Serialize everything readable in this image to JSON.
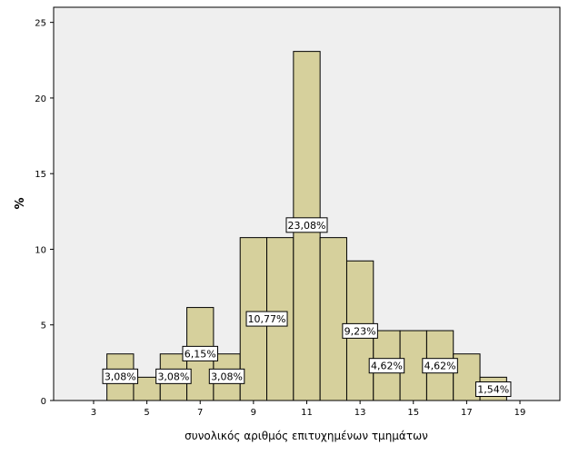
{
  "chart_data": {
    "type": "bar",
    "title": "",
    "xlabel": "συνολικός αριθμός επιτυχημένων τμημάτων",
    "ylabel": "%",
    "xlim": [
      1.5,
      20.5
    ],
    "ylim": [
      0,
      26
    ],
    "x_ticks": [
      3,
      5,
      7,
      9,
      11,
      13,
      15,
      17,
      19
    ],
    "y_ticks": [
      0,
      5,
      10,
      15,
      20,
      25
    ],
    "bin_width": 1,
    "bins": [
      {
        "x": 4,
        "value": 3.08
      },
      {
        "x": 5,
        "value": 1.54
      },
      {
        "x": 6,
        "value": 3.08
      },
      {
        "x": 7,
        "value": 6.15
      },
      {
        "x": 8,
        "value": 3.08
      },
      {
        "x": 9,
        "value": 10.77
      },
      {
        "x": 10,
        "value": 10.77
      },
      {
        "x": 11,
        "value": 23.08
      },
      {
        "x": 12,
        "value": 10.77
      },
      {
        "x": 13,
        "value": 9.23
      },
      {
        "x": 14,
        "value": 4.62
      },
      {
        "x": 15,
        "value": 4.62
      },
      {
        "x": 16,
        "value": 4.62
      },
      {
        "x": 17,
        "value": 3.08
      },
      {
        "x": 18,
        "value": 1.54
      }
    ],
    "data_labels": [
      {
        "x": 4,
        "y": 1.6,
        "text": "3,08%"
      },
      {
        "x": 6,
        "y": 1.6,
        "text": "3,08%"
      },
      {
        "x": 7,
        "y": 3.1,
        "text": "6,15%"
      },
      {
        "x": 8,
        "y": 1.6,
        "text": "3,08%"
      },
      {
        "x": 9.5,
        "y": 5.4,
        "text": "10,77%"
      },
      {
        "x": 11,
        "y": 11.6,
        "text": "23,08%"
      },
      {
        "x": 13,
        "y": 4.6,
        "text": "9,23%"
      },
      {
        "x": 14,
        "y": 2.3,
        "text": "4,62%"
      },
      {
        "x": 16,
        "y": 2.3,
        "text": "4,62%"
      },
      {
        "x": 18,
        "y": 0.75,
        "text": "1,54%"
      }
    ],
    "colors": {
      "bar_fill": "#d6d09c",
      "bar_stroke": "#000000",
      "plot_background": "#efefef",
      "label_background": "#ffffff"
    }
  }
}
